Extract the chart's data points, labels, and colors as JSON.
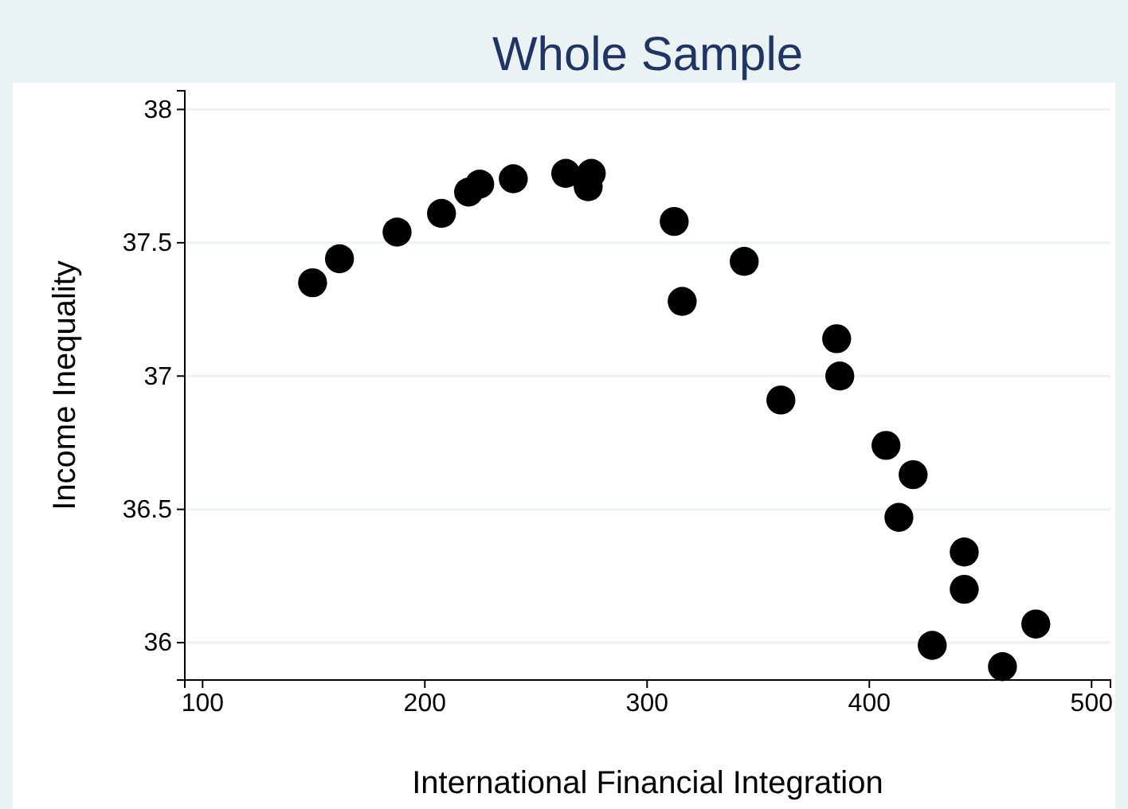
{
  "chart_data": {
    "type": "scatter",
    "title": "Whole Sample",
    "xlabel": "International Financial Integration",
    "ylabel": "Income Inequality",
    "x": [
      149.5,
      161.6,
      187.5,
      207.5,
      219.7,
      224.7,
      239.8,
      263.4,
      274.9,
      273.5,
      312.2,
      315.8,
      343.7,
      385.3,
      386.7,
      360.2,
      407.5,
      419.7,
      413.3,
      442.7,
      442.7,
      428.3,
      474.9,
      459.9
    ],
    "series": [
      {
        "color": "#000000",
        "values": [
          37.35,
          37.44,
          37.54,
          37.61,
          37.69,
          37.72,
          37.74,
          37.76,
          37.76,
          37.71,
          37.58,
          37.28,
          37.43,
          37.14,
          37.0,
          36.91,
          36.74,
          36.63,
          36.47,
          36.34,
          36.2,
          35.99,
          36.07,
          35.91
        ]
      }
    ],
    "xlim": [
      92,
      508.5
    ],
    "ylim": [
      35.86,
      38.07
    ],
    "xticks": [
      100,
      200,
      300,
      400,
      500
    ],
    "yticks": [
      36,
      36.5,
      37,
      37.5,
      38
    ],
    "grid": "y",
    "marker": "circle"
  }
}
